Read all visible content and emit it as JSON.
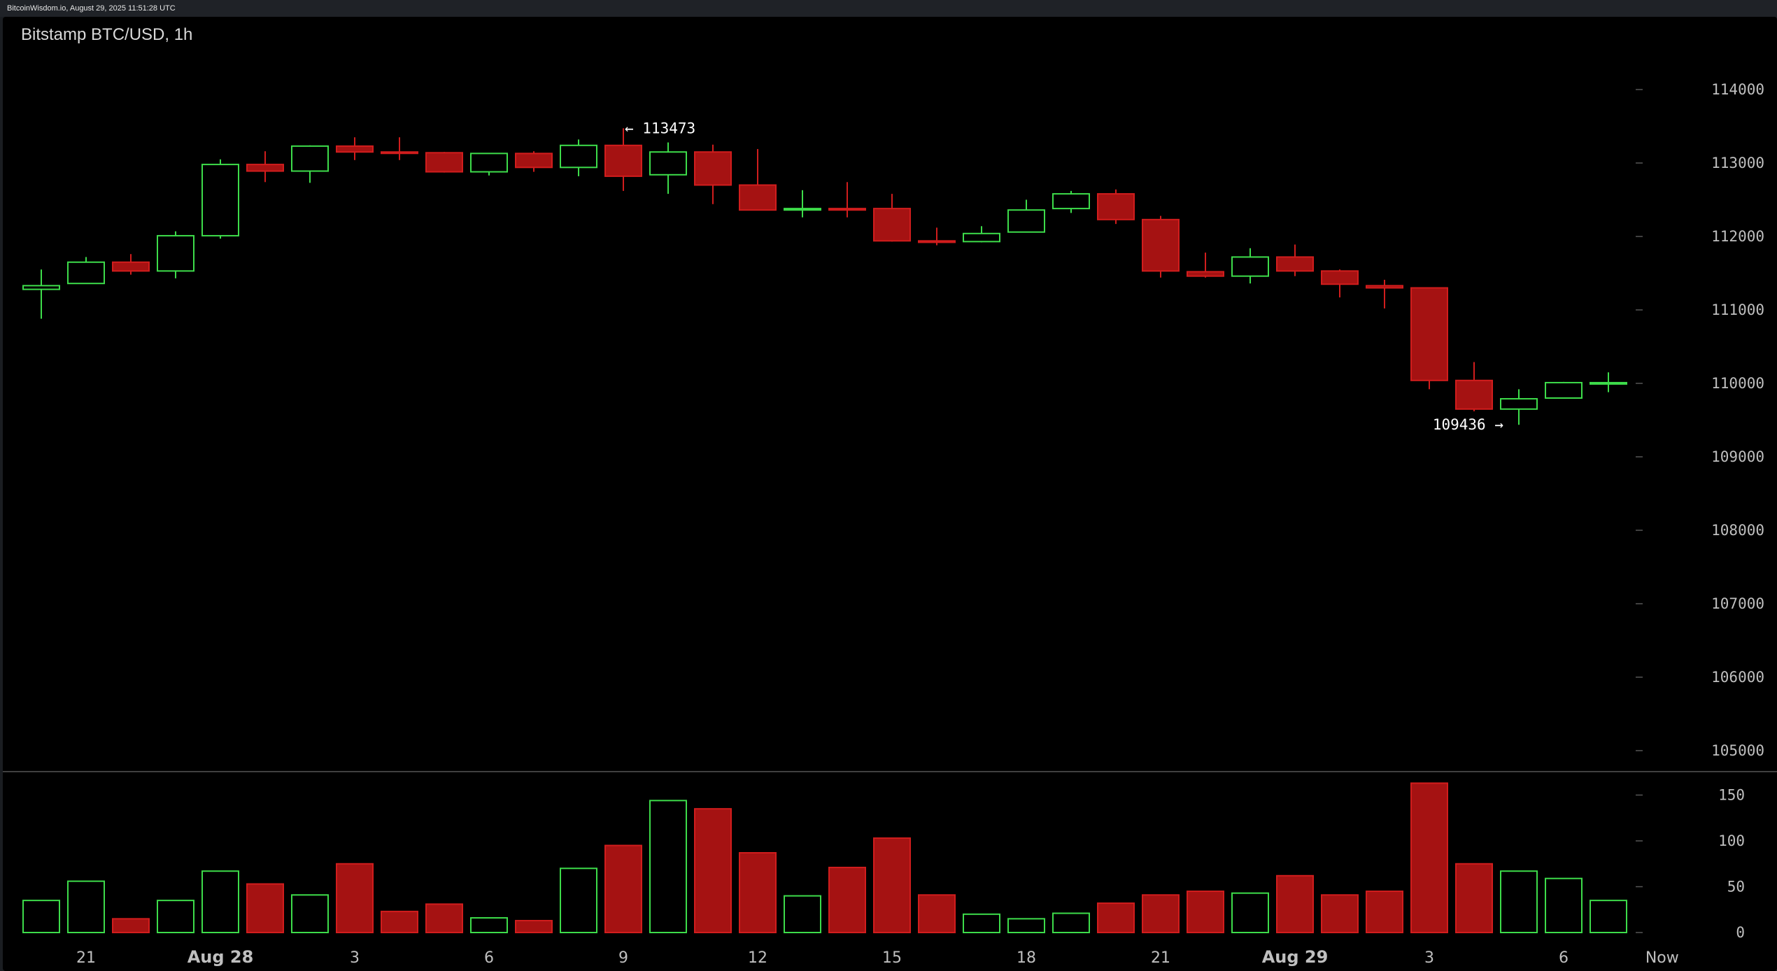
{
  "header": {
    "source_text": "BitcoinWisdom.io, August 29, 2025 11:51:28 UTC"
  },
  "colors": {
    "up": "#3ddc4a",
    "down": "#a51212",
    "down_stroke": "#d11d1d",
    "grid": "#555555",
    "text": "#bfbfbf"
  },
  "chart_data": {
    "type": "candlestick",
    "title": "Bitstamp BTC/USD, 1h",
    "price_axis": {
      "ticks": [
        105000,
        106000,
        107000,
        108000,
        109000,
        110000,
        111000,
        112000,
        113000,
        114000
      ],
      "range": [
        104800,
        114250
      ]
    },
    "volume_axis": {
      "ticks": [
        0,
        50,
        100,
        150
      ],
      "range": [
        0,
        170
      ]
    },
    "x_ticks": [
      {
        "index": 1,
        "label": "21"
      },
      {
        "index": 4,
        "label": "Aug 28",
        "bold": true
      },
      {
        "index": 7,
        "label": "3"
      },
      {
        "index": 10,
        "label": "6"
      },
      {
        "index": 13,
        "label": "9"
      },
      {
        "index": 16,
        "label": "12"
      },
      {
        "index": 19,
        "label": "15"
      },
      {
        "index": 22,
        "label": "18"
      },
      {
        "index": 25,
        "label": "21"
      },
      {
        "index": 28,
        "label": "Aug 29",
        "bold": true
      },
      {
        "index": 31,
        "label": "3"
      },
      {
        "index": 34,
        "label": "6"
      },
      {
        "index": 36.2,
        "label": "Now"
      }
    ],
    "candles": [
      {
        "o": 111280,
        "h": 111550,
        "l": 110880,
        "c": 111330,
        "v": 35
      },
      {
        "o": 111360,
        "h": 111720,
        "l": 111360,
        "c": 111650,
        "v": 56
      },
      {
        "o": 111650,
        "h": 111760,
        "l": 111480,
        "c": 111530,
        "v": 15
      },
      {
        "o": 111530,
        "h": 112070,
        "l": 111430,
        "c": 112010,
        "v": 35
      },
      {
        "o": 112010,
        "h": 113050,
        "l": 111970,
        "c": 112980,
        "v": 67
      },
      {
        "o": 112980,
        "h": 113160,
        "l": 112740,
        "c": 112890,
        "v": 53
      },
      {
        "o": 112890,
        "h": 113240,
        "l": 112730,
        "c": 113230,
        "v": 41
      },
      {
        "o": 113230,
        "h": 113350,
        "l": 113040,
        "c": 113150,
        "v": 75
      },
      {
        "o": 113150,
        "h": 113350,
        "l": 113040,
        "c": 113140,
        "v": 23
      },
      {
        "o": 113140,
        "h": 113150,
        "l": 112870,
        "c": 112880,
        "v": 31
      },
      {
        "o": 112880,
        "h": 113120,
        "l": 112830,
        "c": 113130,
        "v": 16
      },
      {
        "o": 113130,
        "h": 113160,
        "l": 112880,
        "c": 112940,
        "v": 13
      },
      {
        "o": 112940,
        "h": 113320,
        "l": 112820,
        "c": 113240,
        "v": 70
      },
      {
        "o": 113240,
        "h": 113473,
        "l": 112620,
        "c": 112820,
        "v": 95
      },
      {
        "o": 112840,
        "h": 113280,
        "l": 112580,
        "c": 113150,
        "v": 144
      },
      {
        "o": 113150,
        "h": 113250,
        "l": 112440,
        "c": 112700,
        "v": 135
      },
      {
        "o": 112700,
        "h": 113190,
        "l": 112360,
        "c": 112360,
        "v": 87
      },
      {
        "o": 112360,
        "h": 112630,
        "l": 112260,
        "c": 112380,
        "v": 40
      },
      {
        "o": 112380,
        "h": 112740,
        "l": 112260,
        "c": 112360,
        "v": 71
      },
      {
        "o": 112380,
        "h": 112580,
        "l": 111930,
        "c": 111940,
        "v": 103
      },
      {
        "o": 111940,
        "h": 112120,
        "l": 111880,
        "c": 111920,
        "v": 41
      },
      {
        "o": 111930,
        "h": 112140,
        "l": 111920,
        "c": 112040,
        "v": 20
      },
      {
        "o": 112060,
        "h": 112500,
        "l": 112060,
        "c": 112360,
        "v": 15
      },
      {
        "o": 112380,
        "h": 112620,
        "l": 112320,
        "c": 112580,
        "v": 21
      },
      {
        "o": 112580,
        "h": 112640,
        "l": 112170,
        "c": 112230,
        "v": 32
      },
      {
        "o": 112230,
        "h": 112280,
        "l": 111440,
        "c": 111530,
        "v": 41
      },
      {
        "o": 111520,
        "h": 111780,
        "l": 111440,
        "c": 111460,
        "v": 45
      },
      {
        "o": 111460,
        "h": 111840,
        "l": 111360,
        "c": 111720,
        "v": 43
      },
      {
        "o": 111720,
        "h": 111890,
        "l": 111460,
        "c": 111530,
        "v": 62
      },
      {
        "o": 111530,
        "h": 111550,
        "l": 111170,
        "c": 111350,
        "v": 41
      },
      {
        "o": 111330,
        "h": 111410,
        "l": 111020,
        "c": 111300,
        "v": 45
      },
      {
        "o": 111300,
        "h": 111300,
        "l": 109920,
        "c": 110040,
        "v": 163
      },
      {
        "o": 110040,
        "h": 110290,
        "l": 109620,
        "c": 109650,
        "v": 75
      },
      {
        "o": 109650,
        "h": 109920,
        "l": 109436,
        "c": 109790,
        "v": 67
      },
      {
        "o": 109800,
        "h": 110020,
        "l": 109800,
        "c": 110010,
        "v": 59
      },
      {
        "o": 110000,
        "h": 110150,
        "l": 109880,
        "c": 110010,
        "v": 35
      }
    ],
    "annotations": [
      {
        "text": "← 113473",
        "index": 13,
        "price": 113473,
        "side": "right"
      },
      {
        "text": "109436 →",
        "index": 33,
        "price": 109436,
        "side": "left"
      }
    ]
  }
}
